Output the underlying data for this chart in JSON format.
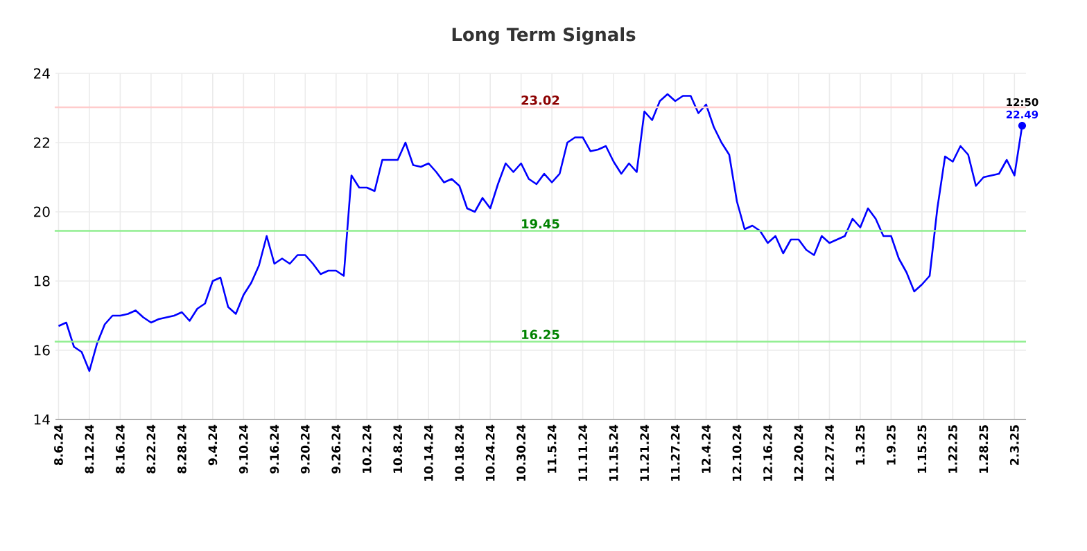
{
  "chart_data": {
    "type": "line",
    "title": "Long Term Signals",
    "categories": [
      "8.6.24",
      null,
      null,
      null,
      "8.12.24",
      null,
      null,
      null,
      "8.16.24",
      null,
      null,
      null,
      "8.22.24",
      null,
      null,
      null,
      "8.28.24",
      null,
      null,
      null,
      "9.4.24",
      null,
      null,
      null,
      "9.10.24",
      null,
      null,
      null,
      "9.16.24",
      null,
      null,
      null,
      "9.20.24",
      null,
      null,
      null,
      "9.26.24",
      null,
      null,
      null,
      "10.2.24",
      null,
      null,
      null,
      "10.8.24",
      null,
      null,
      null,
      "10.14.24",
      null,
      null,
      null,
      "10.18.24",
      null,
      null,
      null,
      "10.24.24",
      null,
      null,
      null,
      "10.30.24",
      null,
      null,
      null,
      "11.5.24",
      null,
      null,
      null,
      "11.11.24",
      null,
      null,
      null,
      "11.15.24",
      null,
      null,
      null,
      "11.21.24",
      null,
      null,
      null,
      "11.27.24",
      null,
      null,
      null,
      "12.4.24",
      null,
      null,
      null,
      "12.10.24",
      null,
      null,
      null,
      "12.16.24",
      null,
      null,
      null,
      "12.20.24",
      null,
      null,
      null,
      "12.27.24",
      null,
      null,
      null,
      "1.3.25",
      null,
      null,
      null,
      "1.9.25",
      null,
      null,
      null,
      "1.15.25",
      null,
      null,
      null,
      "1.22.25",
      null,
      null,
      null,
      "1.28.25",
      null,
      null,
      null,
      "2.3.25",
      null
    ],
    "series": [
      {
        "color": "#0000ff",
        "values": [
          16.7,
          16.8,
          16.1,
          15.95,
          15.4,
          16.2,
          16.75,
          17.0,
          17.0,
          17.05,
          17.15,
          16.95,
          16.8,
          16.9,
          16.95,
          17.0,
          17.1,
          16.85,
          17.2,
          17.35,
          18.0,
          18.1,
          17.25,
          17.05,
          17.6,
          17.95,
          18.45,
          19.3,
          18.5,
          18.65,
          18.5,
          18.75,
          18.75,
          18.5,
          18.2,
          18.3,
          18.3,
          18.15,
          21.05,
          20.7,
          20.7,
          20.6,
          21.5,
          21.5,
          21.5,
          22.0,
          21.35,
          21.3,
          21.4,
          21.15,
          20.85,
          20.95,
          20.75,
          20.1,
          20.0,
          20.4,
          20.1,
          20.8,
          21.4,
          21.15,
          21.4,
          20.95,
          20.8,
          21.1,
          20.85,
          21.1,
          22.0,
          22.15,
          22.15,
          21.75,
          21.8,
          21.9,
          21.45,
          21.1,
          21.4,
          21.15,
          22.9,
          22.65,
          23.2,
          23.4,
          23.2,
          23.35,
          23.35,
          22.85,
          23.1,
          22.45,
          22.0,
          21.65,
          20.3,
          19.5,
          19.6,
          19.45,
          19.1,
          19.3,
          18.8,
          19.2,
          19.2,
          18.9,
          18.75,
          19.3,
          19.1,
          19.2,
          19.3,
          19.8,
          19.55,
          20.1,
          19.8,
          19.3,
          19.3,
          18.65,
          18.25,
          17.7,
          17.9,
          18.15,
          20.1,
          21.6,
          21.45,
          21.9,
          21.65,
          20.75,
          21.0,
          21.05,
          21.1,
          21.5,
          21.05,
          22.49
        ]
      }
    ],
    "ylim": [
      14,
      24
    ],
    "yticks": [
      14,
      16,
      18,
      20,
      22,
      24
    ],
    "grid": true,
    "marker": "none",
    "line_style": "solid",
    "ref_lines": [
      {
        "axis": "y",
        "value": 23.02,
        "label": "23.02",
        "color": "#ffcccc"
      },
      {
        "axis": "y",
        "value": 19.45,
        "label": "19.45",
        "color": "#90ee90"
      },
      {
        "axis": "y",
        "value": 16.25,
        "label": "16.25",
        "color": "#90ee90"
      }
    ],
    "annotations": [
      {
        "text": "12:50",
        "y": 22.49
      },
      {
        "text": "22.49",
        "y": 22.49
      }
    ]
  }
}
